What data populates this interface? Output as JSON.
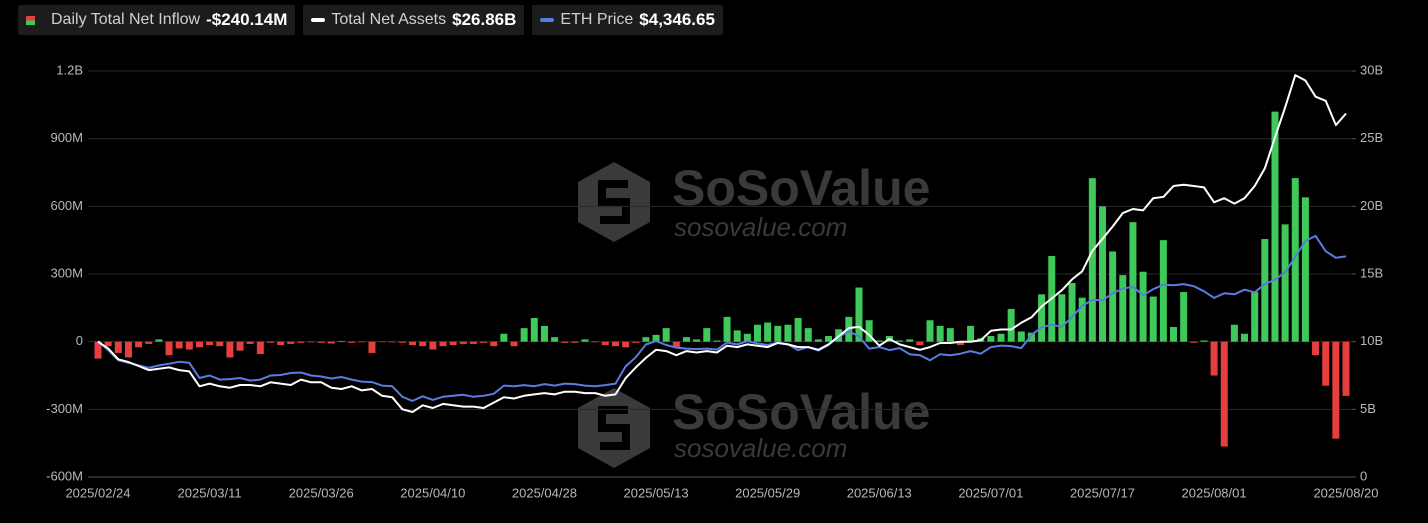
{
  "chart_data": {
    "type": "bar",
    "categories": [
      "2025/02/24",
      null,
      null,
      null,
      null,
      null,
      null,
      null,
      null,
      null,
      null,
      "2025/03/11",
      null,
      null,
      null,
      null,
      null,
      null,
      null,
      null,
      null,
      null,
      "2025/03/26",
      null,
      null,
      null,
      null,
      null,
      null,
      null,
      null,
      null,
      null,
      "2025/04/10",
      null,
      null,
      null,
      null,
      null,
      null,
      null,
      null,
      null,
      null,
      "2025/04/28",
      null,
      null,
      null,
      null,
      null,
      null,
      null,
      null,
      null,
      null,
      "2025/05/13",
      null,
      null,
      null,
      null,
      null,
      null,
      null,
      null,
      null,
      null,
      "2025/05/29",
      null,
      null,
      null,
      null,
      null,
      null,
      null,
      null,
      null,
      null,
      "2025/06/13",
      null,
      null,
      null,
      null,
      null,
      null,
      null,
      null,
      null,
      null,
      "2025/07/01",
      null,
      null,
      null,
      null,
      null,
      null,
      null,
      null,
      null,
      null,
      "2025/07/17",
      null,
      null,
      null,
      null,
      null,
      null,
      null,
      null,
      null,
      null,
      "2025/08/01",
      null,
      null,
      null,
      null,
      null,
      null,
      null,
      null,
      null,
      null,
      null,
      null,
      "2025/08/20"
    ],
    "series": [
      {
        "name": "Daily Total Net Inflow",
        "type": "bar",
        "axis": "y",
        "latest_label": "-$240.14M",
        "positive_color": "#3ec95a",
        "negative_color": "#e5403f",
        "values": [
          -75,
          -20,
          -50,
          -70,
          -25,
          -10,
          10,
          -60,
          -30,
          -35,
          -25,
          -15,
          -20,
          -70,
          -40,
          -10,
          -55,
          -5,
          -15,
          -10,
          -5,
          -3,
          -5,
          -8,
          3,
          -5,
          -3,
          -50,
          -2,
          -3,
          -5,
          -15,
          -20,
          -35,
          -20,
          -15,
          -10,
          -10,
          -5,
          -20,
          35,
          -20,
          60,
          105,
          70,
          20,
          -5,
          -5,
          10,
          -3,
          -15,
          -20,
          -25,
          -5,
          20,
          30,
          60,
          -25,
          20,
          10,
          60,
          5,
          110,
          50,
          35,
          75,
          85,
          70,
          75,
          105,
          60,
          10,
          25,
          55,
          110,
          240,
          95,
          5,
          25,
          5,
          10,
          -15,
          95,
          70,
          60,
          -15,
          70,
          15,
          25,
          35,
          145,
          45,
          40,
          210,
          380,
          210,
          260,
          195,
          725,
          600,
          400,
          295,
          530,
          310,
          200,
          450,
          65,
          220,
          -5,
          5,
          -150,
          -465,
          75,
          35,
          220,
          455,
          1020,
          520,
          725,
          640,
          -60,
          -195,
          -430,
          -240.14
        ]
      },
      {
        "name": "Total Net Assets",
        "type": "line",
        "axis": "y2",
        "color": "#ffffff",
        "latest_label": "$26.86B",
        "values": [
          10.0,
          9.5,
          8.7,
          8.5,
          8.2,
          7.9,
          8.0,
          8.1,
          7.9,
          7.8,
          6.7,
          6.9,
          6.7,
          6.6,
          6.8,
          6.8,
          6.7,
          7.0,
          6.9,
          6.8,
          7.2,
          7.0,
          7.0,
          6.6,
          6.5,
          6.7,
          6.4,
          6.5,
          6.0,
          5.9,
          5.0,
          4.8,
          5.3,
          5.1,
          5.4,
          5.3,
          5.2,
          5.2,
          5.1,
          5.5,
          5.9,
          5.8,
          6.0,
          6.1,
          6.2,
          6.1,
          6.3,
          6.3,
          6.2,
          6.2,
          6.0,
          6.1,
          7.3,
          8.1,
          8.8,
          9.4,
          9.3,
          9.0,
          9.3,
          9.2,
          9.3,
          9.2,
          9.7,
          9.6,
          9.8,
          9.7,
          9.6,
          9.9,
          9.8,
          9.6,
          9.6,
          9.4,
          9.8,
          10.4,
          11.0,
          11.1,
          10.5,
          9.7,
          10.2,
          9.8,
          9.6,
          9.4,
          9.6,
          9.9,
          9.9,
          10.0,
          10.0,
          10.1,
          10.8,
          10.9,
          10.9,
          11.4,
          11.8,
          12.6,
          13.2,
          13.8,
          14.6,
          15.2,
          16.7,
          17.6,
          18.5,
          19.5,
          19.8,
          19.7,
          20.6,
          20.7,
          21.5,
          21.6,
          21.5,
          21.4,
          20.3,
          20.6,
          20.2,
          20.6,
          21.5,
          22.8,
          25.1,
          27.3,
          29.7,
          29.3,
          28.1,
          27.8,
          26.0,
          26.86
        ]
      },
      {
        "name": "ETH Price",
        "type": "line",
        "axis": "y3",
        "color": "#5b7be0",
        "latest_label": "$4,346.65",
        "values": [
          2680,
          2500,
          2300,
          2250,
          2200,
          2150,
          2200,
          2230,
          2270,
          2250,
          1950,
          2000,
          1920,
          1930,
          1950,
          1900,
          1920,
          2000,
          2010,
          2050,
          2060,
          2000,
          1980,
          1940,
          1970,
          1920,
          1880,
          1870,
          1800,
          1790,
          1580,
          1500,
          1590,
          1520,
          1580,
          1600,
          1620,
          1580,
          1600,
          1640,
          1800,
          1790,
          1810,
          1790,
          1830,
          1800,
          1840,
          1830,
          1800,
          1790,
          1810,
          1840,
          2180,
          2360,
          2610,
          2680,
          2600,
          2550,
          2530,
          2520,
          2530,
          2510,
          2650,
          2610,
          2680,
          2630,
          2600,
          2650,
          2610,
          2500,
          2560,
          2490,
          2600,
          2760,
          2870,
          2770,
          2530,
          2560,
          2500,
          2540,
          2420,
          2400,
          2300,
          2420,
          2400,
          2430,
          2480,
          2430,
          2560,
          2590,
          2580,
          2540,
          2800,
          2950,
          3000,
          2960,
          3150,
          3370,
          3490,
          3480,
          3620,
          3710,
          3750,
          3580,
          3700,
          3790,
          3780,
          3800,
          3760,
          3660,
          3530,
          3620,
          3600,
          3690,
          3640,
          3800,
          3890,
          4030,
          4340,
          4650,
          4750,
          4450,
          4320,
          4346.65
        ]
      }
    ],
    "ylim": [
      -600,
      1200
    ],
    "yticks": [
      {
        "value": -600,
        "label": "-600M"
      },
      {
        "value": -300,
        "label": "-300M"
      },
      0,
      {
        "value": 300,
        "label": "300M"
      },
      {
        "value": 600,
        "label": "600M"
      },
      {
        "value": 900,
        "label": "900M"
      },
      {
        "value": 1200,
        "label": "1.2B"
      }
    ],
    "y2lim": [
      0,
      30
    ],
    "y2ticks": [
      0,
      {
        "value": 5,
        "label": "5B"
      },
      {
        "value": 10,
        "label": "10B"
      },
      {
        "value": 15,
        "label": "15B"
      },
      {
        "value": 20,
        "label": "20B"
      },
      {
        "value": 25,
        "label": "25B"
      },
      {
        "value": 30,
        "label": "30B"
      }
    ],
    "y3lim": [
      0,
      8000
    ],
    "grid": true,
    "watermark": {
      "brand": "SoSoValue",
      "url": "sosovalue.com"
    }
  }
}
